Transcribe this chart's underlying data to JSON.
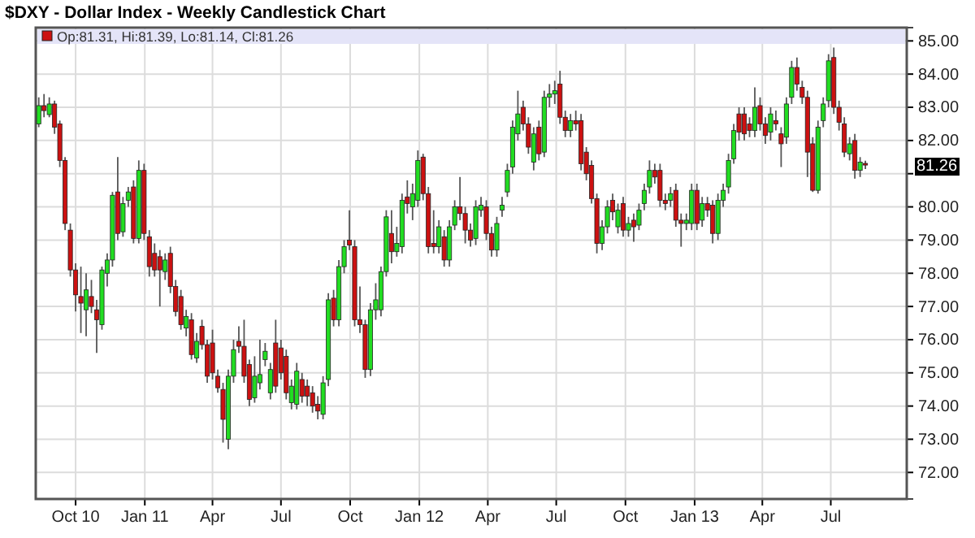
{
  "chart_data": {
    "type": "candlestick",
    "title": "$DXY - Dollar Index - Weekly Candlestick Chart",
    "annotations": [
      "Op:81.31, Hi:81.39, Lo:81.14, Cl:81.26",
      "81.26"
    ],
    "x": [
      "2010-08-13",
      "2010-08-20",
      "2010-08-27",
      "2010-09-03",
      "2010-09-10",
      "2010-09-17",
      "2010-09-24",
      "2010-10-01",
      "2010-10-08",
      "2010-10-15",
      "2010-10-22",
      "2010-10-29",
      "2010-11-05",
      "2010-11-12",
      "2010-11-19",
      "2010-11-26",
      "2010-12-03",
      "2010-12-10",
      "2010-12-17",
      "2010-12-24",
      "2010-12-31",
      "2011-01-07",
      "2011-01-14",
      "2011-01-21",
      "2011-01-28",
      "2011-02-04",
      "2011-02-11",
      "2011-02-18",
      "2011-02-25",
      "2011-03-04",
      "2011-03-11",
      "2011-03-18",
      "2011-03-25",
      "2011-04-01",
      "2011-04-08",
      "2011-04-15",
      "2011-04-22",
      "2011-04-29",
      "2011-05-06",
      "2011-05-13",
      "2011-05-20",
      "2011-05-27",
      "2011-06-03",
      "2011-06-10",
      "2011-06-17",
      "2011-06-24",
      "2011-07-01",
      "2011-07-08",
      "2011-07-15",
      "2011-07-22",
      "2011-07-29",
      "2011-08-05",
      "2011-08-12",
      "2011-08-19",
      "2011-08-26",
      "2011-09-02",
      "2011-09-09",
      "2011-09-16",
      "2011-09-23",
      "2011-09-30",
      "2011-10-07",
      "2011-10-14",
      "2011-10-21",
      "2011-10-28",
      "2011-11-04",
      "2011-11-11",
      "2011-11-18",
      "2011-11-25",
      "2011-12-02",
      "2011-12-09",
      "2011-12-16",
      "2011-12-23",
      "2011-12-30",
      "2012-01-06",
      "2012-01-13",
      "2012-01-20",
      "2012-01-27",
      "2012-02-03",
      "2012-02-10",
      "2012-02-17",
      "2012-02-24",
      "2012-03-02",
      "2012-03-09",
      "2012-03-16",
      "2012-03-23",
      "2012-03-30",
      "2012-04-06",
      "2012-04-13",
      "2012-04-20",
      "2012-04-27",
      "2012-05-04",
      "2012-05-11",
      "2012-05-18",
      "2012-05-25",
      "2012-06-01",
      "2012-06-08",
      "2012-06-15",
      "2012-06-22",
      "2012-06-29",
      "2012-07-06",
      "2012-07-13",
      "2012-07-20",
      "2012-07-27",
      "2012-08-03",
      "2012-08-10",
      "2012-08-17",
      "2012-08-24",
      "2012-08-31",
      "2012-09-07",
      "2012-09-14",
      "2012-09-21",
      "2012-09-28",
      "2012-10-05",
      "2012-10-12",
      "2012-10-19",
      "2012-10-26",
      "2012-11-02",
      "2012-11-09",
      "2012-11-16",
      "2012-11-23",
      "2012-11-30",
      "2012-12-07",
      "2012-12-14",
      "2012-12-21",
      "2012-12-28",
      "2013-01-04",
      "2013-01-11",
      "2013-01-18",
      "2013-01-25",
      "2013-02-01",
      "2013-02-08",
      "2013-02-15",
      "2013-02-22",
      "2013-03-01",
      "2013-03-08",
      "2013-03-15",
      "2013-03-22",
      "2013-03-29",
      "2013-04-05",
      "2013-04-12",
      "2013-04-19",
      "2013-04-26",
      "2013-05-03",
      "2013-05-10",
      "2013-05-17",
      "2013-05-24",
      "2013-05-31",
      "2013-06-07",
      "2013-06-14",
      "2013-06-21",
      "2013-06-28",
      "2013-07-05",
      "2013-07-12",
      "2013-07-19",
      "2013-07-26",
      "2013-08-02",
      "2013-08-09",
      "2013-08-16"
    ],
    "ohlc": [
      [
        82.5,
        83.3,
        82.4,
        83.05
      ],
      [
        83.05,
        83.4,
        82.7,
        82.9
      ],
      [
        82.78,
        83.3,
        82.7,
        83.1
      ],
      [
        83.1,
        83.2,
        82.2,
        82.4
      ],
      [
        82.5,
        82.6,
        81.2,
        81.4
      ],
      [
        81.4,
        81.5,
        79.3,
        79.5
      ],
      [
        79.3,
        79.5,
        77.9,
        78.1
      ],
      [
        78.1,
        78.3,
        76.85,
        77.35
      ],
      [
        77.3,
        78.2,
        76.2,
        77.1
      ],
      [
        76.9,
        78.0,
        76.1,
        77.5
      ],
      [
        77.3,
        77.8,
        76.8,
        77.0
      ],
      [
        76.9,
        77.2,
        75.6,
        76.6
      ],
      [
        76.45,
        78.2,
        76.3,
        78.1
      ],
      [
        78.0,
        78.6,
        77.6,
        78.4
      ],
      [
        78.4,
        80.45,
        78.2,
        80.35
      ],
      [
        80.45,
        81.5,
        79.0,
        79.2
      ],
      [
        79.25,
        80.3,
        79.1,
        80.1
      ],
      [
        80.2,
        80.6,
        80.0,
        80.45
      ],
      [
        80.6,
        80.8,
        78.9,
        79.05
      ],
      [
        79.05,
        81.4,
        78.9,
        81.1
      ],
      [
        81.1,
        81.3,
        79.0,
        79.2
      ],
      [
        79.1,
        79.3,
        77.9,
        78.2
      ],
      [
        78.6,
        78.9,
        77.9,
        78.1
      ],
      [
        78.5,
        78.7,
        77.0,
        78.1
      ],
      [
        78.05,
        78.6,
        77.8,
        78.4
      ],
      [
        78.6,
        78.8,
        77.4,
        77.6
      ],
      [
        77.6,
        77.8,
        76.7,
        76.85
      ],
      [
        77.3,
        77.5,
        76.3,
        76.45
      ],
      [
        76.35,
        76.9,
        76.1,
        76.7
      ],
      [
        76.6,
        76.8,
        75.4,
        75.55
      ],
      [
        75.45,
        76.2,
        75.3,
        75.95
      ],
      [
        76.4,
        76.6,
        75.7,
        75.85
      ],
      [
        75.85,
        76.0,
        74.7,
        74.9
      ],
      [
        75.9,
        76.3,
        74.8,
        75.0
      ],
      [
        74.9,
        75.1,
        74.4,
        74.55
      ],
      [
        74.5,
        74.7,
        72.9,
        73.6
      ],
      [
        73.0,
        75.1,
        72.7,
        74.9
      ],
      [
        74.9,
        76.0,
        74.7,
        75.7
      ],
      [
        75.95,
        76.4,
        75.6,
        75.8
      ],
      [
        75.8,
        76.6,
        74.7,
        74.9
      ],
      [
        75.25,
        75.4,
        74.0,
        74.2
      ],
      [
        74.25,
        75.5,
        74.1,
        74.9
      ],
      [
        74.7,
        76.0,
        74.5,
        74.95
      ],
      [
        75.4,
        75.9,
        75.2,
        75.65
      ],
      [
        74.4,
        75.3,
        74.2,
        75.1
      ],
      [
        75.9,
        76.6,
        74.4,
        74.6
      ],
      [
        75.75,
        76.0,
        74.8,
        75.0
      ],
      [
        75.5,
        75.7,
        74.2,
        74.4
      ],
      [
        74.1,
        74.8,
        73.9,
        74.6
      ],
      [
        74.05,
        75.3,
        73.9,
        75.05
      ],
      [
        74.8,
        75.0,
        74.1,
        74.3
      ],
      [
        74.6,
        74.8,
        74.0,
        74.3
      ],
      [
        74.4,
        74.6,
        73.8,
        74.0
      ],
      [
        74.05,
        74.3,
        73.6,
        73.85
      ],
      [
        73.75,
        74.9,
        73.6,
        74.7
      ],
      [
        74.8,
        77.4,
        74.6,
        77.2
      ],
      [
        77.25,
        77.5,
        76.4,
        76.6
      ],
      [
        76.6,
        78.4,
        76.4,
        78.2
      ],
      [
        78.2,
        79.0,
        78.0,
        78.8
      ],
      [
        79.0,
        79.9,
        78.7,
        78.85
      ],
      [
        78.8,
        79.0,
        76.4,
        76.6
      ],
      [
        76.6,
        77.6,
        76.2,
        76.45
      ],
      [
        76.45,
        76.6,
        74.85,
        75.1
      ],
      [
        75.1,
        77.1,
        74.9,
        76.9
      ],
      [
        76.9,
        77.7,
        76.6,
        77.2
      ],
      [
        76.9,
        78.2,
        76.7,
        78.05
      ],
      [
        78.05,
        79.9,
        77.9,
        79.7
      ],
      [
        79.2,
        79.9,
        78.3,
        78.65
      ],
      [
        78.65,
        79.4,
        78.5,
        78.9
      ],
      [
        78.8,
        80.4,
        78.6,
        80.2
      ],
      [
        80.3,
        80.8,
        79.8,
        80.1
      ],
      [
        80.0,
        80.7,
        79.6,
        80.4
      ],
      [
        80.2,
        81.7,
        80.0,
        81.4
      ],
      [
        81.5,
        81.6,
        80.2,
        80.4
      ],
      [
        80.4,
        80.6,
        78.6,
        78.8
      ],
      [
        78.9,
        79.9,
        78.6,
        78.8
      ],
      [
        78.8,
        79.6,
        78.6,
        79.4
      ],
      [
        79.1,
        79.3,
        78.2,
        78.4
      ],
      [
        78.4,
        79.6,
        78.2,
        79.4
      ],
      [
        79.45,
        80.2,
        79.3,
        80.0
      ],
      [
        80.0,
        80.9,
        79.6,
        79.8
      ],
      [
        79.8,
        80.0,
        78.9,
        79.3
      ],
      [
        79.3,
        79.5,
        78.8,
        79.0
      ],
      [
        79.05,
        80.2,
        78.85,
        80.0
      ],
      [
        79.9,
        80.3,
        79.7,
        80.05
      ],
      [
        80.0,
        80.2,
        79.0,
        79.2
      ],
      [
        79.2,
        79.4,
        78.5,
        78.7
      ],
      [
        78.7,
        79.7,
        78.5,
        79.5
      ],
      [
        79.9,
        80.3,
        79.7,
        80.05
      ],
      [
        80.45,
        81.3,
        80.3,
        81.1
      ],
      [
        81.2,
        82.6,
        81.0,
        82.4
      ],
      [
        82.2,
        83.5,
        82.0,
        82.8
      ],
      [
        83.0,
        83.2,
        82.3,
        82.5
      ],
      [
        82.5,
        82.7,
        81.6,
        81.8
      ],
      [
        81.35,
        82.4,
        81.1,
        82.2
      ],
      [
        82.4,
        82.6,
        81.4,
        81.6
      ],
      [
        81.65,
        83.5,
        81.5,
        83.3
      ],
      [
        83.3,
        83.7,
        83.0,
        83.4
      ],
      [
        83.4,
        83.8,
        83.1,
        83.5
      ],
      [
        83.7,
        84.1,
        82.5,
        82.7
      ],
      [
        82.7,
        82.9,
        82.1,
        82.3
      ],
      [
        82.3,
        82.8,
        82.1,
        82.6
      ],
      [
        82.6,
        82.9,
        82.3,
        82.5
      ],
      [
        82.6,
        82.8,
        81.1,
        81.3
      ],
      [
        81.65,
        81.8,
        80.8,
        81.0
      ],
      [
        81.25,
        81.4,
        80.1,
        80.25
      ],
      [
        80.25,
        80.4,
        78.6,
        78.9
      ],
      [
        78.9,
        79.6,
        78.7,
        79.4
      ],
      [
        79.4,
        80.2,
        79.2,
        80.0
      ],
      [
        80.2,
        80.4,
        79.6,
        79.85
      ],
      [
        79.4,
        80.1,
        79.2,
        79.9
      ],
      [
        80.1,
        80.3,
        79.1,
        79.3
      ],
      [
        79.3,
        79.7,
        79.1,
        79.5
      ],
      [
        79.6,
        79.8,
        78.95,
        79.4
      ],
      [
        79.45,
        80.1,
        79.3,
        79.9
      ],
      [
        80.1,
        80.7,
        79.9,
        80.5
      ],
      [
        80.6,
        81.4,
        80.4,
        81.1
      ],
      [
        81.1,
        81.3,
        80.7,
        80.9
      ],
      [
        81.1,
        81.3,
        80.0,
        80.2
      ],
      [
        80.2,
        80.4,
        79.9,
        80.1
      ],
      [
        80.2,
        80.6,
        80.0,
        80.4
      ],
      [
        80.5,
        80.7,
        79.4,
        79.6
      ],
      [
        79.6,
        79.8,
        78.8,
        79.5
      ],
      [
        79.5,
        79.8,
        79.3,
        79.6
      ],
      [
        79.5,
        80.7,
        79.3,
        80.5
      ],
      [
        80.5,
        80.7,
        79.3,
        79.5
      ],
      [
        79.6,
        80.3,
        79.4,
        80.1
      ],
      [
        80.1,
        80.3,
        79.7,
        79.9
      ],
      [
        80.05,
        80.2,
        78.9,
        79.2
      ],
      [
        79.2,
        80.4,
        79.0,
        80.2
      ],
      [
        80.2,
        80.7,
        80.0,
        80.5
      ],
      [
        80.6,
        81.6,
        80.4,
        81.4
      ],
      [
        81.45,
        82.5,
        81.3,
        82.3
      ],
      [
        82.8,
        83.0,
        82.0,
        82.25
      ],
      [
        82.8,
        83.0,
        82.0,
        82.2
      ],
      [
        82.5,
        82.7,
        82.1,
        82.3
      ],
      [
        82.3,
        83.6,
        82.1,
        83.0
      ],
      [
        83.05,
        83.3,
        82.3,
        82.5
      ],
      [
        82.5,
        82.7,
        81.9,
        82.15
      ],
      [
        82.25,
        83.0,
        82.0,
        82.8
      ],
      [
        82.6,
        82.9,
        82.3,
        82.5
      ],
      [
        82.2,
        82.4,
        81.2,
        81.9
      ],
      [
        82.1,
        83.3,
        81.9,
        83.1
      ],
      [
        83.3,
        84.4,
        83.1,
        84.2
      ],
      [
        84.2,
        84.5,
        83.5,
        83.7
      ],
      [
        83.6,
        83.8,
        83.1,
        83.3
      ],
      [
        83.3,
        83.5,
        80.9,
        81.65
      ],
      [
        81.9,
        82.1,
        80.45,
        80.5
      ],
      [
        80.5,
        82.6,
        80.4,
        82.4
      ],
      [
        82.6,
        83.3,
        82.4,
        83.1
      ],
      [
        83.2,
        84.6,
        83.0,
        84.4
      ],
      [
        84.5,
        84.8,
        82.8,
        83.0
      ],
      [
        83.0,
        83.2,
        82.3,
        82.55
      ],
      [
        82.5,
        82.7,
        81.5,
        81.65
      ],
      [
        81.6,
        82.1,
        81.4,
        81.9
      ],
      [
        82.0,
        82.2,
        80.85,
        81.1
      ],
      [
        81.1,
        81.5,
        80.9,
        81.35
      ],
      [
        81.31,
        81.39,
        81.14,
        81.26
      ]
    ],
    "xlim": [
      "2010-08-09",
      "2013-10-10"
    ],
    "xticks": [
      {
        "value": "2010-10-01",
        "label": "Oct 10"
      },
      {
        "value": "2011-01-01",
        "label": "Jan 11"
      },
      {
        "value": "2011-04-01",
        "label": "Apr"
      },
      {
        "value": "2011-07-01",
        "label": "Jul"
      },
      {
        "value": "2011-10-01",
        "label": "Oct"
      },
      {
        "value": "2012-01-01",
        "label": "Jan 12"
      },
      {
        "value": "2012-04-01",
        "label": "Apr"
      },
      {
        "value": "2012-07-01",
        "label": "Jul"
      },
      {
        "value": "2012-10-01",
        "label": "Oct"
      },
      {
        "value": "2013-01-01",
        "label": "Jan 13"
      },
      {
        "value": "2013-04-01",
        "label": "Apr"
      },
      {
        "value": "2013-07-01",
        "label": "Jul"
      }
    ],
    "ylim": [
      71.2,
      85.4
    ],
    "yticks": [
      {
        "value": 72,
        "label": "72.00"
      },
      {
        "value": 73,
        "label": "73.00"
      },
      {
        "value": 74,
        "label": "74.00"
      },
      {
        "value": 75,
        "label": "75.00"
      },
      {
        "value": 76,
        "label": "76.00"
      },
      {
        "value": 77,
        "label": "77.00"
      },
      {
        "value": 78,
        "label": "78.00"
      },
      {
        "value": 79,
        "label": "79.00"
      },
      {
        "value": 80,
        "label": "80.00"
      },
      {
        "value": 81,
        "label": null
      },
      {
        "value": 82,
        "label": "82.00"
      },
      {
        "value": 83,
        "label": "83.00"
      },
      {
        "value": 84,
        "label": "84.00"
      },
      {
        "value": 85,
        "label": "85.00"
      }
    ],
    "grid": true
  }
}
